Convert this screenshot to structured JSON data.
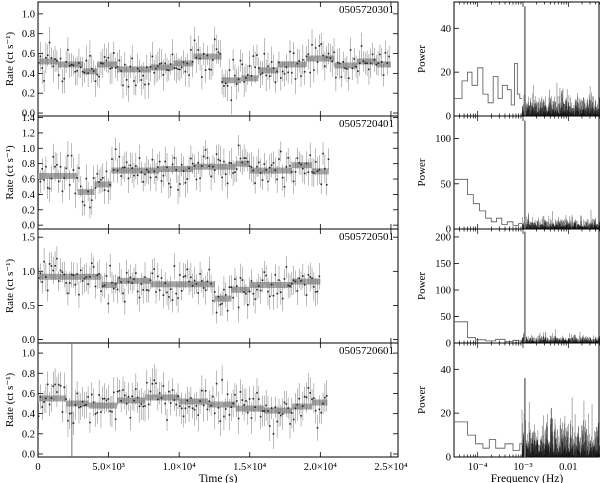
{
  "figure": {
    "light_curve_xlabel": "Time (s)",
    "psd_xlabel": "Frequency (Hz)"
  },
  "chart_data": [
    {
      "type": "scatter",
      "role": "light_curve",
      "panel_label": "0505720301",
      "ylabel": "Rate (ct s⁻¹)",
      "xlim": [
        0,
        25500
      ],
      "ylim": [
        -0.03,
        1.12
      ],
      "x_ticks": [
        0,
        5000,
        10000,
        15000,
        20000,
        25000
      ],
      "x_tick_labels": [
        "0",
        "5.0×10³",
        "1.0×10⁴",
        "1.5×10⁴",
        "2.0×10⁴",
        "2.5×10⁴"
      ],
      "y_ticks": [
        0,
        0.2,
        0.4,
        0.6,
        0.8,
        1.0
      ],
      "y_tick_labels": [
        "0.0",
        "0.2",
        "0.4",
        "0.6",
        "0.8",
        "1.0"
      ],
      "data_x_end": 25000,
      "noise": 0.18,
      "blocks": [
        {
          "x0": 0,
          "x1": 1400,
          "y": 0.52
        },
        {
          "x0": 1400,
          "x1": 3200,
          "y": 0.49
        },
        {
          "x0": 3200,
          "x1": 4200,
          "y": 0.42
        },
        {
          "x0": 4200,
          "x1": 5600,
          "y": 0.49
        },
        {
          "x0": 5600,
          "x1": 8000,
          "y": 0.44
        },
        {
          "x0": 8000,
          "x1": 9600,
          "y": 0.46
        },
        {
          "x0": 9600,
          "x1": 11000,
          "y": 0.5
        },
        {
          "x0": 11000,
          "x1": 13000,
          "y": 0.57
        },
        {
          "x0": 13000,
          "x1": 14400,
          "y": 0.33
        },
        {
          "x0": 14400,
          "x1": 15600,
          "y": 0.35
        },
        {
          "x0": 15600,
          "x1": 17000,
          "y": 0.43
        },
        {
          "x0": 17000,
          "x1": 19000,
          "y": 0.49
        },
        {
          "x0": 19000,
          "x1": 21000,
          "y": 0.55
        },
        {
          "x0": 21000,
          "x1": 22600,
          "y": 0.48
        },
        {
          "x0": 22600,
          "x1": 24000,
          "y": 0.52
        },
        {
          "x0": 24000,
          "x1": 25000,
          "y": 0.49
        }
      ]
    },
    {
      "type": "scatter",
      "role": "light_curve",
      "panel_label": "0505720401",
      "ylabel": "Rate (ct s⁻¹)",
      "xlim": [
        0,
        25500
      ],
      "ylim": [
        -0.05,
        1.42
      ],
      "x_ticks": [
        0,
        5000,
        10000,
        15000,
        20000,
        25000
      ],
      "y_ticks": [
        0,
        0.2,
        0.4,
        0.6,
        0.8,
        1.0,
        1.2,
        1.4
      ],
      "y_tick_labels": [
        "0.0",
        "0.2",
        "0.4",
        "0.6",
        "0.8",
        "1.0",
        "1.2",
        "1.4"
      ],
      "data_x_end": 20600,
      "noise": 0.22,
      "blocks": [
        {
          "x0": 0,
          "x1": 2800,
          "y": 0.64
        },
        {
          "x0": 2800,
          "x1": 4000,
          "y": 0.43
        },
        {
          "x0": 4000,
          "x1": 5200,
          "y": 0.53
        },
        {
          "x0": 5200,
          "x1": 8600,
          "y": 0.71
        },
        {
          "x0": 8600,
          "x1": 11000,
          "y": 0.73
        },
        {
          "x0": 11000,
          "x1": 14000,
          "y": 0.76
        },
        {
          "x0": 14000,
          "x1": 15000,
          "y": 0.8
        },
        {
          "x0": 15000,
          "x1": 18000,
          "y": 0.71
        },
        {
          "x0": 18000,
          "x1": 19400,
          "y": 0.78
        },
        {
          "x0": 19400,
          "x1": 20600,
          "y": 0.7
        }
      ]
    },
    {
      "type": "scatter",
      "role": "light_curve",
      "panel_label": "0505720501",
      "ylabel": "Rate (ct s⁻¹)",
      "xlim": [
        0,
        25500
      ],
      "ylim": [
        -0.05,
        1.62
      ],
      "x_ticks": [
        0,
        5000,
        10000,
        15000,
        20000,
        25000
      ],
      "y_ticks": [
        0,
        0.5,
        1.0,
        1.5
      ],
      "y_tick_labels": [
        "0.0",
        "0.5",
        "1.0",
        "1.5"
      ],
      "data_x_end": 20000,
      "noise": 0.24,
      "blocks": [
        {
          "x0": 0,
          "x1": 4500,
          "y": 0.92
        },
        {
          "x0": 4500,
          "x1": 5600,
          "y": 0.8
        },
        {
          "x0": 5600,
          "x1": 8000,
          "y": 0.86
        },
        {
          "x0": 8000,
          "x1": 12500,
          "y": 0.81
        },
        {
          "x0": 12500,
          "x1": 13700,
          "y": 0.6
        },
        {
          "x0": 13700,
          "x1": 15000,
          "y": 0.73
        },
        {
          "x0": 15000,
          "x1": 18000,
          "y": 0.8
        },
        {
          "x0": 18000,
          "x1": 20000,
          "y": 0.85
        }
      ]
    },
    {
      "type": "scatter",
      "role": "light_curve",
      "panel_label": "0505720601",
      "ylabel": "Rate (ct s⁻¹)",
      "xlim": [
        0,
        25500
      ],
      "ylim": [
        -0.03,
        1.1
      ],
      "x_ticks": [
        0,
        5000,
        10000,
        15000,
        20000,
        25000
      ],
      "x_tick_labels": [
        "0",
        "5.0×10³",
        "1.0×10⁴",
        "1.5×10⁴",
        "2.0×10⁴",
        "2.5×10⁴"
      ],
      "y_ticks": [
        0,
        0.2,
        0.4,
        0.6,
        0.8,
        1.0
      ],
      "y_tick_labels": [
        "0.0",
        "0.2",
        "0.4",
        "0.6",
        "0.8",
        "1.0"
      ],
      "data_x_end": 20500,
      "noise": 0.18,
      "spike_x": 2400,
      "blocks": [
        {
          "x0": 0,
          "x1": 2000,
          "y": 0.55
        },
        {
          "x0": 2000,
          "x1": 3600,
          "y": 0.5
        },
        {
          "x0": 3600,
          "x1": 5600,
          "y": 0.48
        },
        {
          "x0": 5600,
          "x1": 7600,
          "y": 0.53
        },
        {
          "x0": 7600,
          "x1": 10000,
          "y": 0.56
        },
        {
          "x0": 10000,
          "x1": 12000,
          "y": 0.52
        },
        {
          "x0": 12000,
          "x1": 14000,
          "y": 0.49
        },
        {
          "x0": 14000,
          "x1": 16000,
          "y": 0.45
        },
        {
          "x0": 16000,
          "x1": 18000,
          "y": 0.43
        },
        {
          "x0": 18000,
          "x1": 19400,
          "y": 0.47
        },
        {
          "x0": 19400,
          "x1": 20500,
          "y": 0.51
        }
      ]
    },
    {
      "type": "line",
      "role": "power_spectrum",
      "ylabel": "Power",
      "x_scale": "log",
      "xlim": [
        3e-05,
        0.05
      ],
      "ylim": [
        0,
        52
      ],
      "y_ticks": [
        0,
        20,
        40
      ],
      "y_tick_labels": [
        "0",
        "20",
        "40"
      ],
      "peak_frequency": 0.0011,
      "peak_power": 50,
      "low_steps": [
        {
          "f": 3e-05,
          "p": 8
        },
        {
          "f": 4.5e-05,
          "p": 16
        },
        {
          "f": 6e-05,
          "p": 20
        },
        {
          "f": 7.5e-05,
          "p": 14
        },
        {
          "f": 0.0001,
          "p": 22
        },
        {
          "f": 0.00013,
          "p": 10
        },
        {
          "f": 0.00017,
          "p": 6
        },
        {
          "f": 0.00022,
          "p": 18
        },
        {
          "f": 0.00028,
          "p": 8
        },
        {
          "f": 0.00035,
          "p": 14
        },
        {
          "f": 0.00045,
          "p": 12
        },
        {
          "f": 0.00055,
          "p": 5
        },
        {
          "f": 0.00065,
          "p": 24
        },
        {
          "f": 0.00075,
          "p": 10
        },
        {
          "f": 0.00085,
          "p": 8
        }
      ],
      "noise_level": 7
    },
    {
      "type": "line",
      "role": "power_spectrum",
      "ylabel": "Power",
      "x_scale": "log",
      "xlim": [
        3e-05,
        0.05
      ],
      "ylim": [
        0,
        125
      ],
      "y_ticks": [
        0,
        50,
        100
      ],
      "y_tick_labels": [
        "0",
        "50",
        "100"
      ],
      "peak_frequency": 0.0011,
      "peak_power": 120,
      "low_steps": [
        {
          "f": 3e-05,
          "p": 55
        },
        {
          "f": 6e-05,
          "p": 38
        },
        {
          "f": 8e-05,
          "p": 28
        },
        {
          "f": 0.00011,
          "p": 20
        },
        {
          "f": 0.00015,
          "p": 12
        },
        {
          "f": 0.0002,
          "p": 8
        },
        {
          "f": 0.00026,
          "p": 12
        },
        {
          "f": 0.00034,
          "p": 5
        },
        {
          "f": 0.00045,
          "p": 8
        },
        {
          "f": 0.0006,
          "p": 4
        },
        {
          "f": 0.0008,
          "p": 6
        }
      ],
      "noise_level": 8
    },
    {
      "type": "line",
      "role": "power_spectrum",
      "ylabel": "Power",
      "x_scale": "log",
      "xlim": [
        3e-05,
        0.05
      ],
      "ylim": [
        0,
        215
      ],
      "y_ticks": [
        0,
        50,
        100,
        150,
        200
      ],
      "y_tick_labels": [
        "0",
        "50",
        "100",
        "150",
        "200"
      ],
      "peak_frequency": 0.0011,
      "peak_power": 210,
      "low_steps": [
        {
          "f": 3e-05,
          "p": 40
        },
        {
          "f": 6e-05,
          "p": 10
        },
        {
          "f": 9e-05,
          "p": 6
        },
        {
          "f": 0.00015,
          "p": 4
        },
        {
          "f": 0.00025,
          "p": 7
        },
        {
          "f": 0.0004,
          "p": 3
        },
        {
          "f": 0.0006,
          "p": 5
        },
        {
          "f": 0.0008,
          "p": 4
        }
      ],
      "noise_level": 10
    },
    {
      "type": "line",
      "role": "power_spectrum",
      "ylabel": "Power",
      "x_scale": "log",
      "xlim": [
        3e-05,
        0.05
      ],
      "ylim": [
        0,
        52
      ],
      "y_ticks": [
        0,
        20,
        40
      ],
      "y_tick_labels": [
        "0",
        "20",
        "40"
      ],
      "x_ticks": [
        0.0001,
        0.001,
        0.01
      ],
      "x_tick_labels": [
        "10⁻⁴",
        "10⁻³",
        "0.01"
      ],
      "peak_frequency": 0.0011,
      "peak_power": 36,
      "low_steps": [
        {
          "f": 3e-05,
          "p": 16
        },
        {
          "f": 6e-05,
          "p": 10
        },
        {
          "f": 9e-05,
          "p": 6
        },
        {
          "f": 0.00013,
          "p": 4
        },
        {
          "f": 0.00018,
          "p": 8
        },
        {
          "f": 0.00025,
          "p": 4
        },
        {
          "f": 0.0004,
          "p": 6
        },
        {
          "f": 0.0006,
          "p": 3
        },
        {
          "f": 0.00085,
          "p": 6
        }
      ],
      "noise_level": 12
    }
  ]
}
